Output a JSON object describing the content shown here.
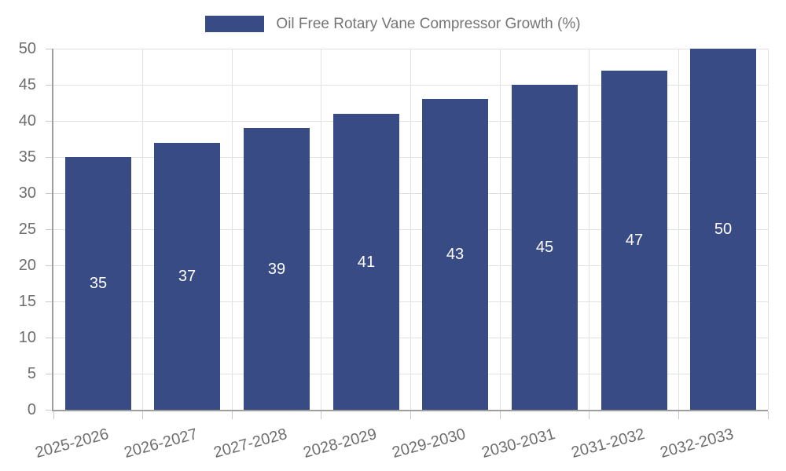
{
  "legend": {
    "label": "Oil Free Rotary Vane Compressor Growth (%)"
  },
  "chart_data": {
    "type": "bar",
    "title": "Oil Free Rotary Vane Compressor Growth (%)",
    "categories": [
      "2025-2026",
      "2026-2027",
      "2027-2028",
      "2028-2029",
      "2029-2030",
      "2030-2031",
      "2031-2032",
      "2032-2033"
    ],
    "values": [
      35,
      37,
      39,
      41,
      43,
      45,
      47,
      50
    ],
    "xlabel": "",
    "ylabel": "",
    "ylim": [
      0,
      50
    ],
    "ytick_step": 5,
    "ytick_labels": [
      "0",
      "5",
      "10",
      "15",
      "20",
      "25",
      "30",
      "35",
      "40",
      "45",
      "50"
    ],
    "grid": true,
    "legend_position": "top-center",
    "bar_color": "#384B85",
    "value_label_color": "#ffffff",
    "axis_color": "#9e9e9e",
    "grid_color": "#e2e2e2",
    "tick_text_color": "#6e6e6e",
    "legend_text_color": "#757575"
  }
}
